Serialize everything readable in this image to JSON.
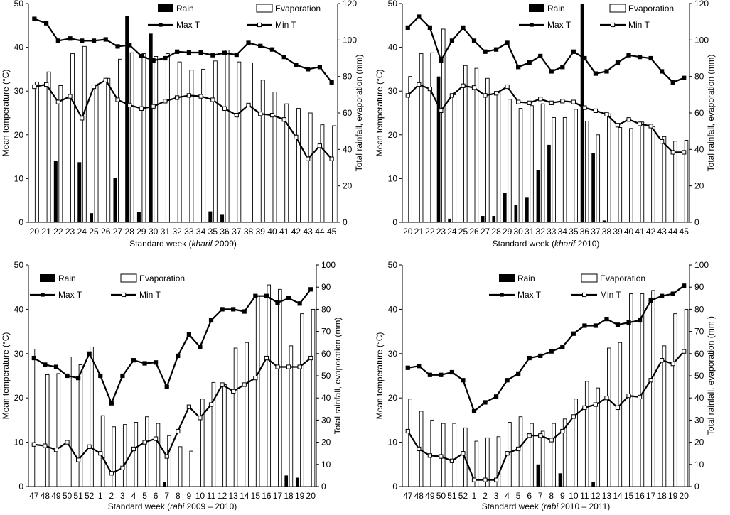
{
  "colors": {
    "rain": "#000000",
    "evap_fill": "#ffffff",
    "evap_stroke": "#000000",
    "line": "#000000"
  },
  "legend": {
    "rain": "Rain",
    "evaporation": "Evaporation",
    "max_t": "Max T",
    "min_t": "Min T"
  },
  "chart_data": [
    {
      "type": "bar",
      "title": "",
      "xlabel_prefix": "Standard week (",
      "xlabel_season": "kharif",
      "xlabel_suffix": " 2009)",
      "ylabel": "Mean temperature (°C)",
      "y2label": "Total rainfall, evaporation (mm)",
      "ylim": [
        0,
        50
      ],
      "y2lim": [
        0,
        120
      ],
      "yticks": [
        0,
        10,
        20,
        30,
        40,
        50
      ],
      "y2ticks": [
        0,
        20,
        40,
        60,
        80,
        100,
        120
      ],
      "legend_position": "top",
      "categories": [
        "20",
        "21",
        "22",
        "23",
        "24",
        "25",
        "26",
        "27",
        "28",
        "29",
        "30",
        "31",
        "32",
        "33",
        "34",
        "35",
        "36",
        "37",
        "38",
        "39",
        "40",
        "41",
        "42",
        "43",
        "44",
        "45"
      ],
      "series": [
        {
          "name": "Rain",
          "axis": "y2",
          "kind": "bar",
          "values": [
            0,
            0,
            33.6,
            0,
            33,
            5,
            0,
            24.5,
            113,
            5.5,
            103.5,
            0,
            0,
            0,
            0,
            6,
            4.5,
            0,
            0,
            0,
            0,
            0,
            0,
            0,
            0,
            0
          ]
        },
        {
          "name": "Evaporation",
          "axis": "y2",
          "kind": "bar",
          "values": [
            77,
            82.5,
            75,
            92.5,
            96.5,
            75,
            79,
            89.5,
            93,
            92.5,
            91,
            92.5,
            88,
            83.5,
            84,
            88.5,
            94.5,
            88,
            87.5,
            78,
            71.5,
            65,
            62.5,
            60,
            53.5,
            53
          ]
        },
        {
          "name": "Max T",
          "axis": "y",
          "kind": "line",
          "values": [
            46.5,
            45.5,
            41.5,
            42,
            41.5,
            41.5,
            41.8,
            40.2,
            40.5,
            38,
            37,
            37.5,
            39,
            38.8,
            38.8,
            38.2,
            38.7,
            38.3,
            41,
            40.3,
            39.5,
            37.8,
            36,
            35,
            35.5,
            32
          ]
        },
        {
          "name": "Min T",
          "axis": "y",
          "kind": "line",
          "values": [
            31,
            31.5,
            27.5,
            28.8,
            23.8,
            31,
            32.5,
            28,
            26.8,
            26,
            26.5,
            27.7,
            28.5,
            29,
            28.8,
            28,
            26,
            24.5,
            26.8,
            24.8,
            24.5,
            23.5,
            19.5,
            14.5,
            17.5,
            14.5
          ]
        }
      ]
    },
    {
      "type": "bar",
      "title": "",
      "xlabel_prefix": "Standard week (",
      "xlabel_season": "kharif",
      "xlabel_suffix": "  2010)",
      "ylabel": "Mean temperature (°C)",
      "y2label": "Total rainfall, evaporation (mm)",
      "ylim": [
        0,
        50
      ],
      "y2lim": [
        0,
        120
      ],
      "yticks": [
        0,
        10,
        20,
        30,
        40,
        50
      ],
      "y2ticks": [
        0,
        20,
        40,
        60,
        80,
        100,
        120
      ],
      "legend_position": "top",
      "categories": [
        "20",
        "21",
        "22",
        "23",
        "24",
        "25",
        "26",
        "27",
        "28",
        "29",
        "30",
        "31",
        "32",
        "33",
        "34",
        "35",
        "36",
        "37",
        "38",
        "39",
        "40",
        "41",
        "42",
        "43",
        "44",
        "45"
      ],
      "series": [
        {
          "name": "Rain",
          "axis": "y2",
          "kind": "bar",
          "values": [
            0,
            0,
            0,
            80,
            2,
            0,
            0,
            3.5,
            3.5,
            16,
            9.5,
            13.5,
            28.5,
            42.5,
            0,
            0,
            120,
            38,
            1,
            0,
            0,
            0,
            0,
            0,
            0,
            0
          ]
        },
        {
          "name": "Evaporation",
          "axis": "y2",
          "kind": "bar",
          "values": [
            80,
            92.5,
            93,
            106,
            70,
            86,
            84.5,
            79,
            71,
            67.5,
            62.5,
            64,
            65,
            57.5,
            57.5,
            62,
            55.5,
            48,
            59.5,
            52,
            51.5,
            55,
            52.5,
            47,
            44.5,
            45
          ]
        },
        {
          "name": "Max T",
          "axis": "y",
          "kind": "line",
          "values": [
            44.5,
            47,
            44.5,
            37,
            41.5,
            44.5,
            41.5,
            39,
            39.5,
            41,
            35.5,
            36.5,
            38,
            34.5,
            35.5,
            39,
            37.5,
            34,
            34.5,
            36.5,
            38.2,
            37.8,
            37.5,
            34.5,
            32,
            33
          ]
        },
        {
          "name": "Min T",
          "axis": "y",
          "kind": "line",
          "values": [
            29,
            31.5,
            30.5,
            25.5,
            29,
            31.2,
            30.8,
            29,
            29.5,
            31,
            27.5,
            27.3,
            28.2,
            27.3,
            27.7,
            27.5,
            26.2,
            25.5,
            24.7,
            22.2,
            23.5,
            22.5,
            22,
            18.5,
            16,
            16
          ]
        }
      ]
    },
    {
      "type": "bar",
      "title": "",
      "xlabel_prefix": "Standard week  (",
      "xlabel_season": "rabi",
      "xlabel_suffix": " 2009 – 2010)",
      "ylabel": "Mean temperature (°C)",
      "y2label": "Total rainfall, evaporation (mm)",
      "ylim": [
        0,
        50
      ],
      "y2lim": [
        0,
        100
      ],
      "yticks": [
        0,
        10,
        20,
        30,
        40,
        50
      ],
      "y2ticks": [
        0,
        10,
        20,
        30,
        40,
        50,
        60,
        70,
        80,
        90,
        100
      ],
      "legend_position": "top",
      "categories": [
        "47",
        "48",
        "49",
        "50",
        "51",
        "52",
        "1",
        "2",
        "3",
        "4",
        "5",
        "6",
        "7",
        "8",
        "9",
        "10",
        "11",
        "12",
        "13",
        "14",
        "15",
        "16",
        "17",
        "18",
        "19",
        "20"
      ],
      "series": [
        {
          "name": "Rain",
          "axis": "y2",
          "kind": "bar",
          "values": [
            0,
            0,
            0,
            0,
            0,
            0,
            0,
            0,
            0,
            0,
            0,
            0,
            2,
            0,
            0,
            0,
            0,
            0,
            0,
            0,
            0,
            0,
            0,
            5,
            4,
            0
          ]
        },
        {
          "name": "Evaporation",
          "axis": "y2",
          "kind": "bar",
          "values": [
            62,
            50.5,
            51,
            58.5,
            55,
            63,
            32,
            27,
            28,
            29,
            31.5,
            28.5,
            23,
            18,
            16,
            39.5,
            47,
            46,
            62.5,
            65,
            86,
            91,
            89,
            63.5,
            78,
            80
          ]
        },
        {
          "name": "Max T",
          "axis": "y",
          "kind": "line",
          "values": [
            29,
            27.5,
            27,
            25,
            24.5,
            30,
            25,
            18.8,
            25,
            28.5,
            27.8,
            28,
            22.5,
            29.5,
            34.3,
            31.5,
            37.5,
            40,
            40,
            39.5,
            43,
            43,
            41.5,
            42.5,
            41.3,
            44.5
          ]
        },
        {
          "name": "Min T",
          "axis": "y",
          "kind": "line",
          "values": [
            9.5,
            9.2,
            8.3,
            10,
            6,
            9,
            7.5,
            3,
            4.2,
            8.5,
            10,
            10.8,
            6.8,
            12.5,
            18,
            15.5,
            18.5,
            23,
            21.5,
            23,
            24.5,
            29,
            27,
            27,
            27,
            29
          ]
        }
      ]
    },
    {
      "type": "bar",
      "title": "",
      "xlabel_prefix": "Standard week  (",
      "xlabel_season": "rabi",
      "xlabel_suffix": " 2010 – 2011)",
      "ylabel": "Mean temperature (°C)",
      "y2label": "Total rainfall, evaporation (mm )",
      "ylim": [
        0,
        50
      ],
      "y2lim": [
        0,
        100
      ],
      "yticks": [
        0,
        10,
        20,
        30,
        40,
        50
      ],
      "y2ticks": [
        0,
        10,
        20,
        30,
        40,
        50,
        60,
        70,
        80,
        90,
        100
      ],
      "legend_position": "top",
      "categories": [
        "47",
        "48",
        "49",
        "50",
        "51",
        "52",
        "1",
        "2",
        "3",
        "4",
        "5",
        "6",
        "7",
        "8",
        "9",
        "10",
        "11",
        "12",
        "13",
        "14",
        "15",
        "16",
        "17",
        "18",
        "19",
        "20"
      ],
      "series": [
        {
          "name": "Rain",
          "axis": "y2",
          "kind": "bar",
          "values": [
            0,
            0,
            0,
            0,
            0,
            0,
            0,
            0,
            0,
            0,
            0,
            0,
            10,
            0,
            6,
            0,
            0,
            2,
            0,
            0,
            0,
            0,
            0,
            0,
            0,
            0
          ]
        },
        {
          "name": "Evaporation",
          "axis": "y2",
          "kind": "bar",
          "values": [
            39.5,
            34,
            30,
            28.5,
            28.5,
            26.5,
            20.5,
            22,
            22.5,
            29,
            31.5,
            28.5,
            25,
            28.5,
            30.5,
            39.5,
            47.5,
            44.5,
            62.5,
            65,
            87,
            87,
            88.5,
            63.5,
            78,
            80
          ]
        },
        {
          "name": "Max T",
          "axis": "y",
          "kind": "line",
          "values": [
            26.8,
            27.2,
            25.2,
            25.2,
            25.8,
            24,
            17,
            19,
            20.3,
            24,
            25.5,
            29,
            29.5,
            30.5,
            31.5,
            34.5,
            36.3,
            36.3,
            37.8,
            36.5,
            37,
            37.5,
            42,
            43,
            43.5,
            45.3
          ]
        },
        {
          "name": "Min T",
          "axis": "y",
          "kind": "line",
          "values": [
            12.5,
            8.5,
            7,
            6.8,
            5.8,
            7.5,
            1.5,
            1.5,
            1.5,
            7.5,
            8.5,
            11.5,
            11.5,
            10.5,
            12.5,
            15.8,
            17.8,
            18.5,
            20,
            17.8,
            20.5,
            20.2,
            24,
            28.5,
            27.7,
            30.5
          ]
        }
      ]
    }
  ]
}
